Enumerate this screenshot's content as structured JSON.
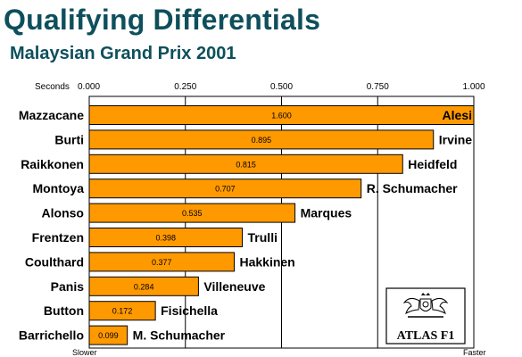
{
  "header": {
    "title": "Qualifying Differentials",
    "subtitle": "Malaysian Grand Prix 2001"
  },
  "chart_data": {
    "type": "bar",
    "orientation": "horizontal",
    "title": "Qualifying Differentials",
    "subtitle": "Malaysian Grand Prix 2001",
    "xlabel": "Seconds",
    "xlim": [
      0,
      1
    ],
    "xticks": [
      "0.000",
      "0.250",
      "0.500",
      "0.750",
      "1.000"
    ],
    "x_left_label": "Slower",
    "x_right_label": "Faster",
    "grid": "vertical",
    "bar_color": "#ff9900",
    "rows": [
      {
        "slower": "Mazzacane",
        "faster": "Alesi",
        "value": 1.6,
        "label": "1.600"
      },
      {
        "slower": "Burti",
        "faster": "Irvine",
        "value": 0.895,
        "label": "0.895"
      },
      {
        "slower": "Raikkonen",
        "faster": "Heidfeld",
        "value": 0.815,
        "label": "0.815"
      },
      {
        "slower": "Montoya",
        "faster": "R. Schumacher",
        "value": 0.707,
        "label": "0.707"
      },
      {
        "slower": "Alonso",
        "faster": "Marques",
        "value": 0.535,
        "label": "0.535"
      },
      {
        "slower": "Frentzen",
        "faster": "Trulli",
        "value": 0.398,
        "label": "0.398"
      },
      {
        "slower": "Coulthard",
        "faster": "Hakkinen",
        "value": 0.377,
        "label": "0.377"
      },
      {
        "slower": "Panis",
        "faster": "Villeneuve",
        "value": 0.284,
        "label": "0.284"
      },
      {
        "slower": "Button",
        "faster": "Fisichella",
        "value": 0.172,
        "label": "0.172"
      },
      {
        "slower": "Barrichello",
        "faster": "M. Schumacher",
        "value": 0.099,
        "label": "0.099"
      }
    ]
  },
  "logo": {
    "text": "ATLAS F1",
    "icon": "crest-icon"
  }
}
